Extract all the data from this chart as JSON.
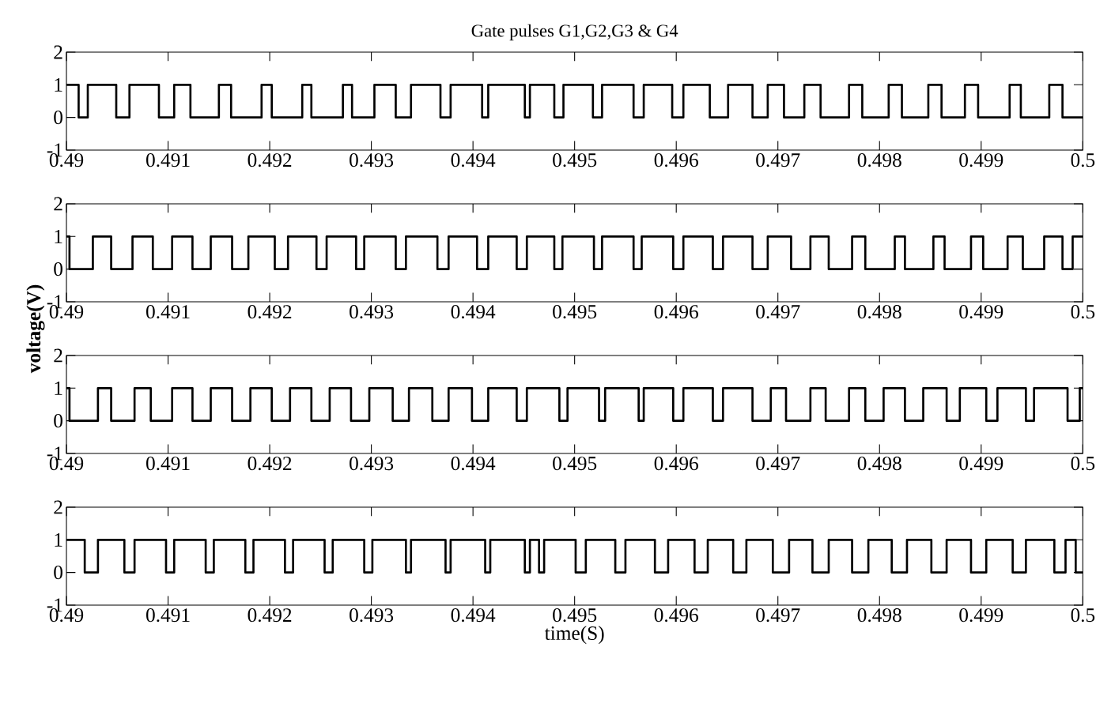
{
  "chart_data": [
    {
      "type": "step",
      "title": "Gate pulses G1,G2,G3 & G4",
      "color": "#000000",
      "xlim": [
        0.49,
        0.5
      ],
      "ylim": [
        -1,
        2
      ],
      "xticks": [
        0.49,
        0.491,
        0.492,
        0.493,
        0.494,
        0.495,
        0.496,
        0.497,
        0.498,
        0.499,
        0.5
      ],
      "yticks": [
        -1,
        0,
        1,
        2
      ],
      "x": [
        0.49,
        0.49012,
        0.49021,
        0.49049,
        0.49062,
        0.49091,
        0.49106,
        0.49122,
        0.4915,
        0.49162,
        0.49192,
        0.49202,
        0.49232,
        0.49241,
        0.49272,
        0.49281,
        0.49303,
        0.49324,
        0.49339,
        0.49368,
        0.49378,
        0.49409,
        0.49415,
        0.49451,
        0.49456,
        0.4948,
        0.49489,
        0.49518,
        0.49527,
        0.49558,
        0.49568,
        0.49596,
        0.49607,
        0.49633,
        0.49651,
        0.49675,
        0.4969,
        0.49706,
        0.49726,
        0.49742,
        0.4977,
        0.49783,
        0.49809,
        0.49822,
        0.49848,
        0.49861,
        0.49884,
        0.49897,
        0.49928,
        0.49939,
        0.49967,
        0.4998,
        0.5
      ],
      "values": [
        1,
        0,
        1,
        0,
        1,
        0,
        1,
        0,
        1,
        0,
        1,
        0,
        1,
        0,
        1,
        0,
        1,
        0,
        1,
        0,
        1,
        0,
        1,
        0,
        1,
        0,
        1,
        0,
        1,
        0,
        1,
        0,
        1,
        0,
        1,
        0,
        1,
        0,
        1,
        0,
        1,
        0,
        1,
        0,
        1,
        0,
        1,
        0,
        1,
        0,
        1,
        0,
        0
      ]
    },
    {
      "type": "step",
      "ylabel": "voltage(V)",
      "color": "#000000",
      "xlim": [
        0.49,
        0.5
      ],
      "ylim": [
        -1,
        2
      ],
      "xticks": [
        0.49,
        0.491,
        0.492,
        0.493,
        0.494,
        0.495,
        0.496,
        0.497,
        0.498,
        0.499,
        0.5
      ],
      "yticks": [
        -1,
        0,
        1,
        2
      ],
      "x": [
        0.49,
        0.49003,
        0.49026,
        0.49044,
        0.49065,
        0.49085,
        0.49104,
        0.49124,
        0.49142,
        0.49163,
        0.49179,
        0.49205,
        0.49218,
        0.49246,
        0.49256,
        0.49285,
        0.49293,
        0.49324,
        0.49334,
        0.49365,
        0.49376,
        0.49404,
        0.49415,
        0.49443,
        0.49453,
        0.4948,
        0.49488,
        0.49519,
        0.49527,
        0.49558,
        0.49566,
        0.49597,
        0.49607,
        0.49636,
        0.49646,
        0.49675,
        0.4969,
        0.49713,
        0.49732,
        0.4975,
        0.49773,
        0.49786,
        0.49815,
        0.49825,
        0.49853,
        0.49864,
        0.4989,
        0.49902,
        0.49926,
        0.49941,
        0.49962,
        0.4998,
        0.4999,
        0.5
      ],
      "values": [
        1,
        0,
        1,
        0,
        1,
        0,
        1,
        0,
        1,
        0,
        1,
        0,
        1,
        0,
        1,
        0,
        1,
        0,
        1,
        0,
        1,
        0,
        1,
        0,
        1,
        0,
        1,
        0,
        1,
        0,
        1,
        0,
        1,
        0,
        1,
        0,
        1,
        0,
        1,
        0,
        1,
        0,
        1,
        0,
        1,
        0,
        1,
        0,
        1,
        0,
        1,
        0,
        1,
        1
      ]
    },
    {
      "type": "step",
      "color": "#000000",
      "xlim": [
        0.49,
        0.5
      ],
      "ylim": [
        -1,
        2
      ],
      "xticks": [
        0.49,
        0.491,
        0.492,
        0.493,
        0.494,
        0.495,
        0.496,
        0.497,
        0.498,
        0.499,
        0.5
      ],
      "yticks": [
        -1,
        0,
        1,
        2
      ],
      "x": [
        0.49,
        0.49003,
        0.49031,
        0.49044,
        0.49067,
        0.49083,
        0.49104,
        0.49124,
        0.49142,
        0.49163,
        0.49181,
        0.49202,
        0.4922,
        0.49241,
        0.49259,
        0.4928,
        0.49298,
        0.49321,
        0.49337,
        0.4936,
        0.49376,
        0.49399,
        0.49415,
        0.49443,
        0.49453,
        0.49485,
        0.49493,
        0.49524,
        0.4953,
        0.49563,
        0.49568,
        0.49597,
        0.49607,
        0.49636,
        0.49646,
        0.49675,
        0.49693,
        0.49708,
        0.49732,
        0.49747,
        0.4977,
        0.49786,
        0.49804,
        0.49825,
        0.49843,
        0.49866,
        0.49879,
        0.49905,
        0.49916,
        0.49944,
        0.49952,
        0.49985,
        0.49997,
        0.5
      ],
      "values": [
        1,
        0,
        1,
        0,
        1,
        0,
        1,
        0,
        1,
        0,
        1,
        0,
        1,
        0,
        1,
        0,
        1,
        0,
        1,
        0,
        1,
        0,
        1,
        0,
        1,
        0,
        1,
        0,
        1,
        0,
        1,
        0,
        1,
        0,
        1,
        0,
        1,
        0,
        1,
        0,
        1,
        0,
        1,
        0,
        1,
        0,
        1,
        0,
        1,
        0,
        1,
        0,
        1,
        1
      ]
    },
    {
      "type": "step",
      "xlabel": "time(S)",
      "color": "#000000",
      "xlim": [
        0.49,
        0.5
      ],
      "ylim": [
        -1,
        2
      ],
      "xticks": [
        0.49,
        0.491,
        0.492,
        0.493,
        0.494,
        0.495,
        0.496,
        0.497,
        0.498,
        0.499,
        0.5
      ],
      "yticks": [
        -1,
        0,
        1,
        2
      ],
      "x": [
        0.49,
        0.49018,
        0.49031,
        0.49057,
        0.49067,
        0.49098,
        0.49106,
        0.49137,
        0.49145,
        0.49176,
        0.49184,
        0.49215,
        0.49223,
        0.49254,
        0.49262,
        0.49293,
        0.49301,
        0.49334,
        0.49339,
        0.49373,
        0.49378,
        0.49412,
        0.49417,
        0.49451,
        0.49456,
        0.49465,
        0.4947,
        0.49501,
        0.49511,
        0.4954,
        0.4955,
        0.49579,
        0.49592,
        0.49618,
        0.49631,
        0.49656,
        0.49669,
        0.49695,
        0.49711,
        0.49734,
        0.4975,
        0.49773,
        0.49789,
        0.49812,
        0.49827,
        0.49851,
        0.49866,
        0.4989,
        0.49905,
        0.49931,
        0.49944,
        0.49972,
        0.49983,
        0.49993,
        0.5
      ],
      "values": [
        1,
        0,
        1,
        0,
        1,
        0,
        1,
        0,
        1,
        0,
        1,
        0,
        1,
        0,
        1,
        0,
        1,
        0,
        1,
        0,
        1,
        0,
        1,
        0,
        1,
        0,
        1,
        0,
        1,
        0,
        1,
        0,
        1,
        0,
        1,
        0,
        1,
        0,
        1,
        0,
        1,
        0,
        1,
        0,
        1,
        0,
        1,
        0,
        1,
        0,
        1,
        0,
        1,
        0,
        0
      ]
    }
  ]
}
